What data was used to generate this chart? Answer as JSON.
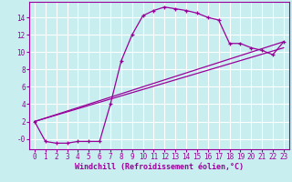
{
  "xlabel": "Windchill (Refroidissement éolien,°C)",
  "bg_color": "#c8eef0",
  "line_color": "#990099",
  "grid_color": "#ffffff",
  "xlim": [
    -0.5,
    23.5
  ],
  "ylim": [
    -1.2,
    15.8
  ],
  "xticks": [
    0,
    1,
    2,
    3,
    4,
    5,
    6,
    7,
    8,
    9,
    10,
    11,
    12,
    13,
    14,
    15,
    16,
    17,
    18,
    19,
    20,
    21,
    22,
    23
  ],
  "yticks": [
    0,
    2,
    4,
    6,
    8,
    10,
    12,
    14
  ],
  "ytick_labels": [
    "-0",
    "2",
    "4",
    "6",
    "8",
    "10",
    "12",
    "14"
  ],
  "line1_x": [
    0,
    1,
    2,
    3,
    4,
    5,
    6,
    7,
    8,
    9,
    10,
    11,
    12,
    13,
    14,
    15,
    16,
    17,
    18,
    19,
    20,
    21,
    22,
    23
  ],
  "line1_y": [
    2.0,
    -0.3,
    -0.5,
    -0.5,
    -0.3,
    -0.3,
    -0.3,
    4.0,
    9.0,
    12.0,
    14.2,
    14.8,
    15.2,
    15.0,
    14.8,
    14.5,
    14.0,
    13.7,
    11.0,
    11.0,
    10.5,
    10.2,
    9.7,
    11.2
  ],
  "line2_x": [
    0,
    23
  ],
  "line2_y": [
    2.0,
    11.2
  ],
  "line3_x": [
    0,
    23
  ],
  "line3_y": [
    2.0,
    10.5
  ],
  "xlabel_fontsize": 6.0,
  "tick_fontsize": 5.5
}
